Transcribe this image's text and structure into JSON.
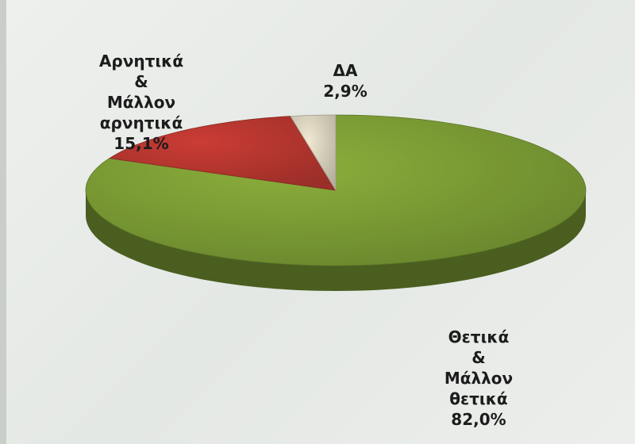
{
  "chart_data": {
    "type": "pie3d",
    "categories": [
      "Θετικά & Μάλλον θετικά",
      "Αρνητικά & Μάλλον αρνητικά",
      "ΔΑ"
    ],
    "values": [
      82.0,
      15.1,
      2.9
    ],
    "value_labels": [
      "82,0%",
      "15,1%",
      "2,9%"
    ],
    "colors": [
      "#7c9c35",
      "#b5362f",
      "#d6cfbb"
    ]
  }
}
